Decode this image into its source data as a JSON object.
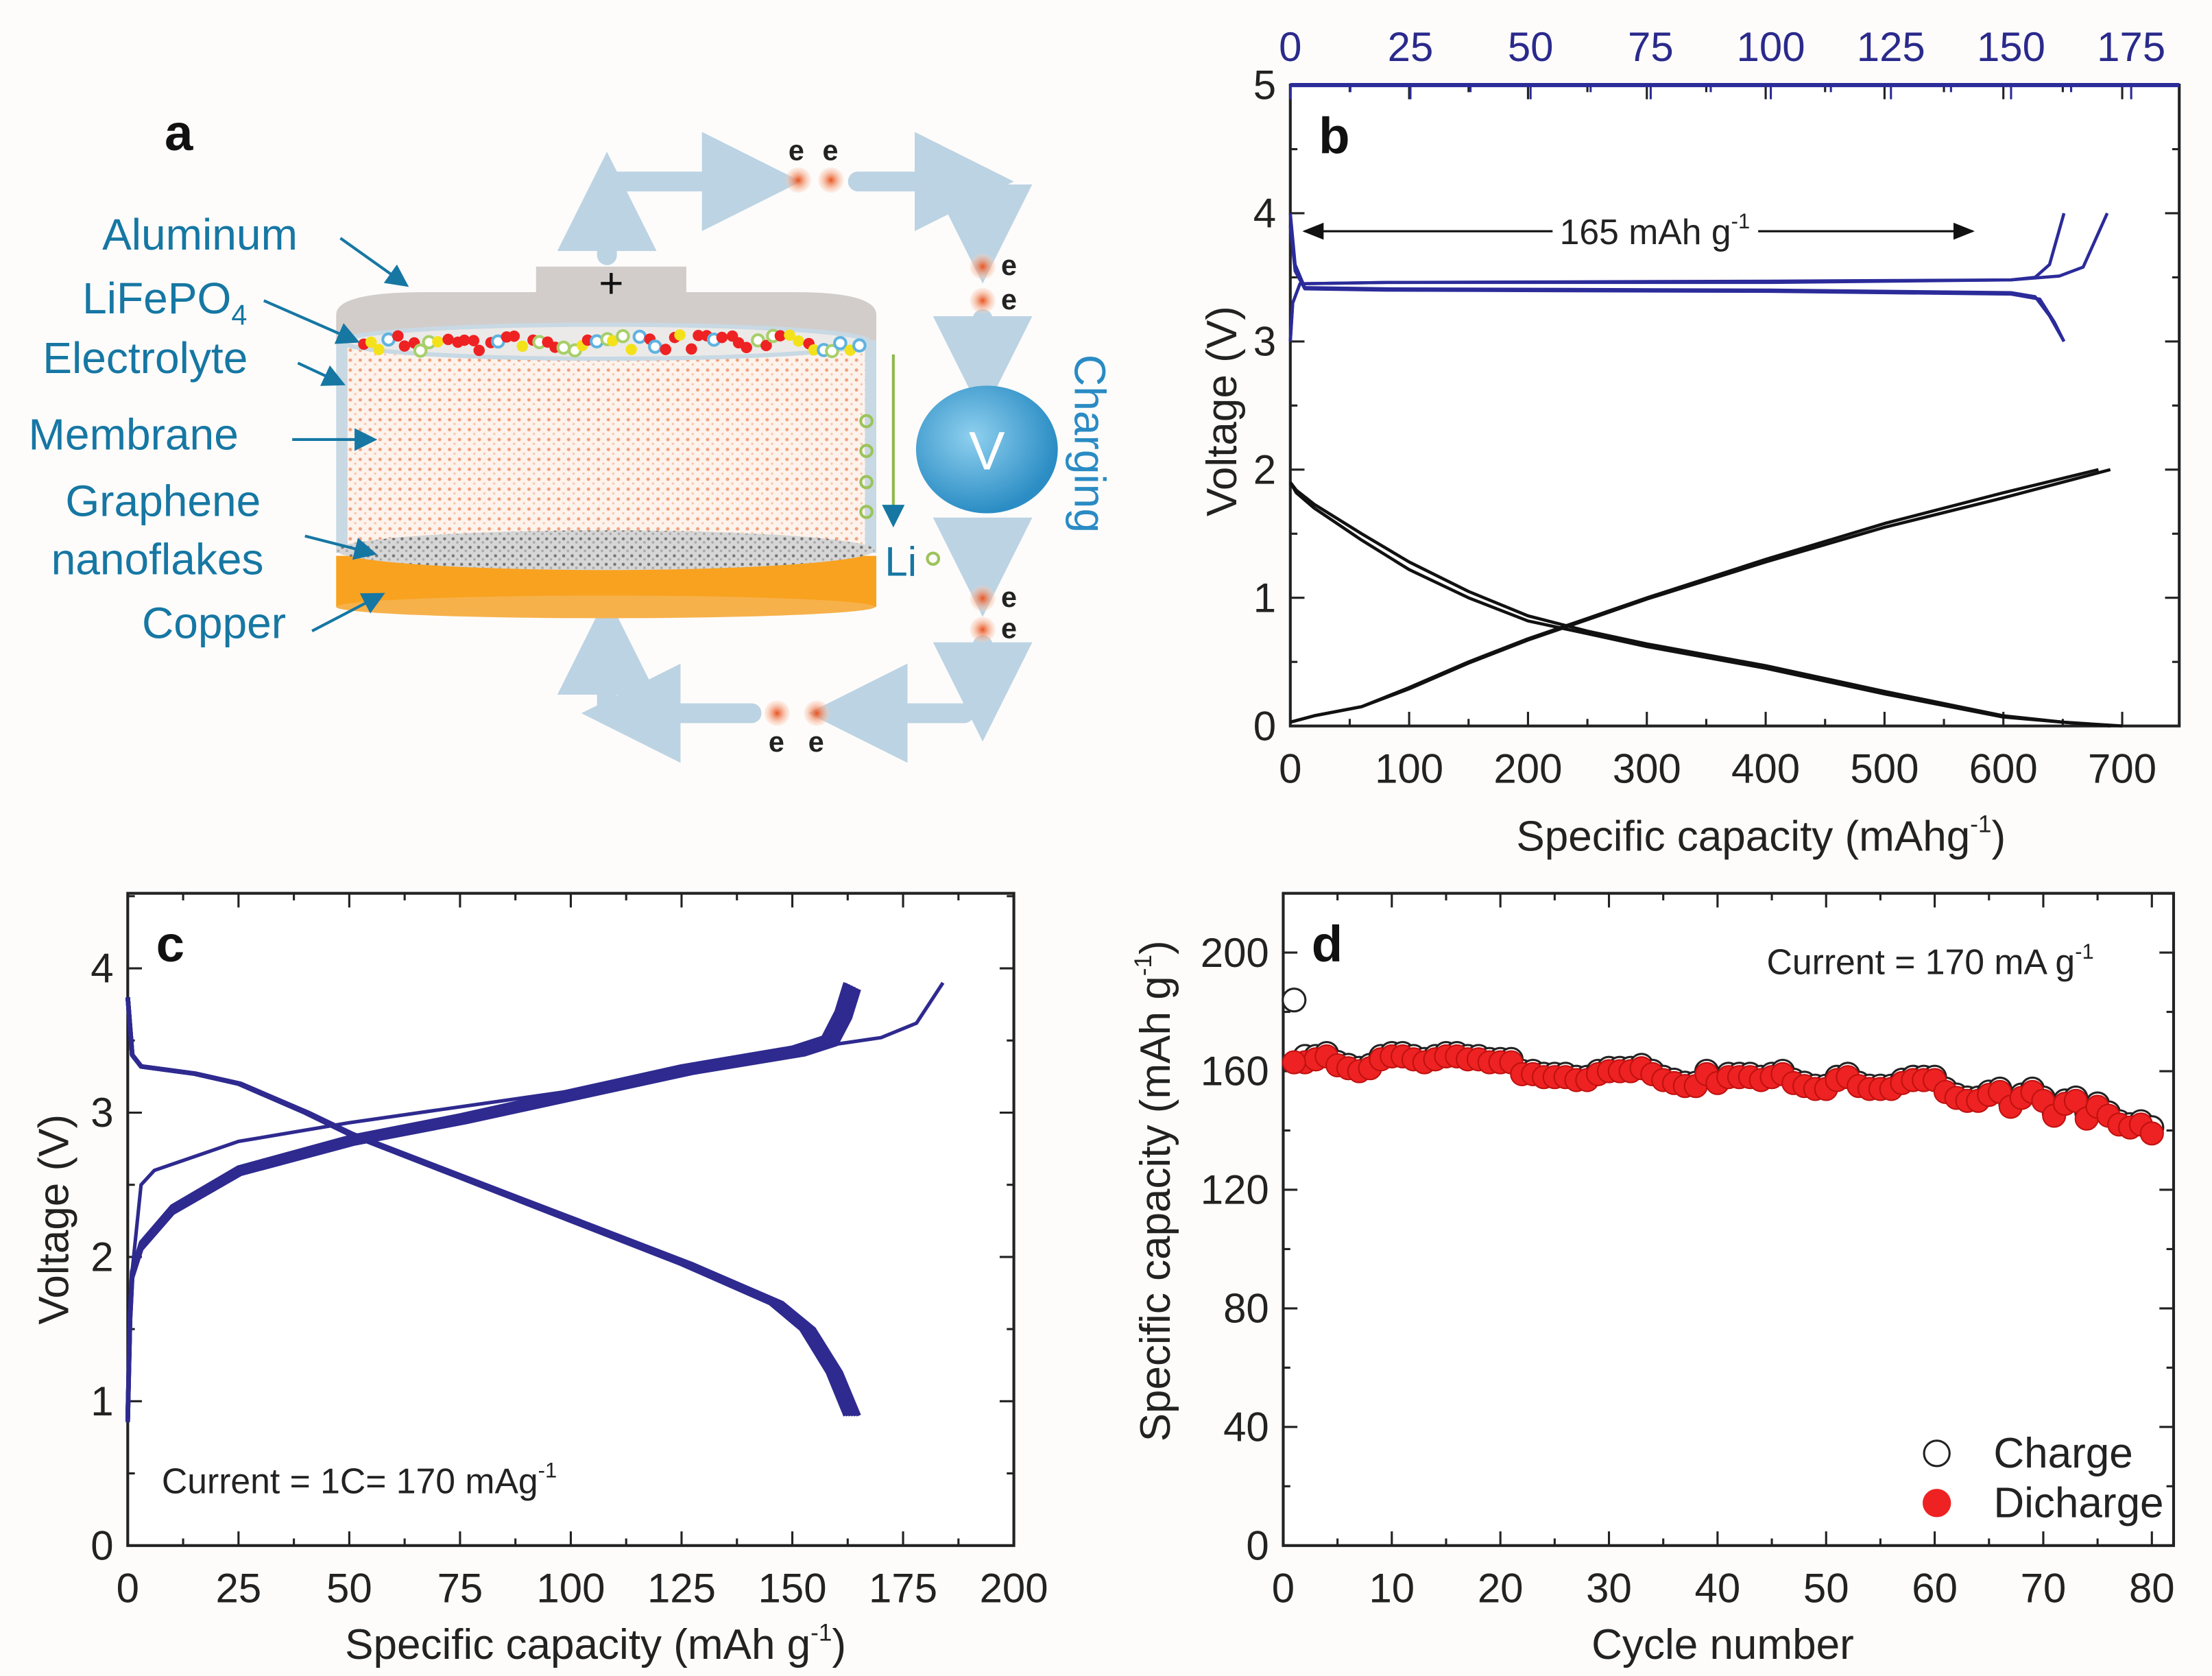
{
  "panel_a": {
    "letter": "a",
    "labels": {
      "aluminum": "Aluminum",
      "lifepo4": "LiFePO",
      "lifepo4_sub": "4",
      "electrolyte": "Electrolyte",
      "membrane": "Membrane",
      "graphene": "Graphene",
      "nanoflakes": "nanoflakes",
      "copper": "Copper",
      "plus": "+",
      "voltmeter": "V",
      "charging": "Charging",
      "li": "Li",
      "electron": "e"
    },
    "colors": {
      "label": "#1677a3",
      "copper": "#f8a21f",
      "lid": "#d2cdcb",
      "circuit": "#bcd3e3",
      "voltmeter": "#4aa7d6",
      "li_ion": "#9cc35a"
    }
  },
  "chart_data": [
    {
      "panel": "b",
      "type": "line",
      "letter": "b",
      "xlabel": "Specific capacity (mAhg",
      "xlabel_sup": "-1",
      "xlabel_end": ")",
      "ylabel": "Voltage (V)",
      "xlim": [
        0,
        748
      ],
      "ylim": [
        0,
        5
      ],
      "xticks": [
        0,
        100,
        200,
        300,
        400,
        500,
        600,
        700
      ],
      "yticks": [
        0,
        1,
        2,
        3,
        4,
        5
      ],
      "top_xlim": [
        0,
        185
      ],
      "top_xticks": [
        0,
        25,
        50,
        75,
        100,
        125,
        150,
        175
      ],
      "annotation": "165 mAh g",
      "annotation_sup": "-1",
      "annotation_range": [
        0,
        142
      ],
      "annotation_v": 3.86,
      "series": [
        {
          "name": "graphene discharge 1",
          "axis": "bottom",
          "color": "#111111",
          "points": [
            [
              0,
              1.9
            ],
            [
              5,
              1.82
            ],
            [
              20,
              1.7
            ],
            [
              60,
              1.45
            ],
            [
              100,
              1.22
            ],
            [
              150,
              1.0
            ],
            [
              200,
              0.82
            ],
            [
              250,
              0.72
            ],
            [
              300,
              0.62
            ],
            [
              400,
              0.45
            ],
            [
              500,
              0.25
            ],
            [
              600,
              0.07
            ],
            [
              650,
              0.03
            ],
            [
              700,
              0
            ]
          ]
        },
        {
          "name": "graphene discharge 2",
          "axis": "bottom",
          "color": "#111111",
          "points": [
            [
              0,
              1.9
            ],
            [
              5,
              1.84
            ],
            [
              20,
              1.73
            ],
            [
              60,
              1.5
            ],
            [
              100,
              1.28
            ],
            [
              150,
              1.05
            ],
            [
              200,
              0.86
            ],
            [
              250,
              0.74
            ],
            [
              300,
              0.64
            ],
            [
              400,
              0.47
            ],
            [
              500,
              0.27
            ],
            [
              600,
              0.08
            ],
            [
              650,
              0.03
            ],
            [
              690,
              0
            ]
          ]
        },
        {
          "name": "graphene charge 1",
          "axis": "bottom",
          "color": "#111111",
          "points": [
            [
              0,
              0.03
            ],
            [
              20,
              0.08
            ],
            [
              60,
              0.15
            ],
            [
              100,
              0.3
            ],
            [
              150,
              0.5
            ],
            [
              200,
              0.68
            ],
            [
              250,
              0.84
            ],
            [
              300,
              1.0
            ],
            [
              400,
              1.3
            ],
            [
              500,
              1.58
            ],
            [
              600,
              1.82
            ],
            [
              680,
              2.0
            ]
          ]
        },
        {
          "name": "graphene charge 2",
          "axis": "bottom",
          "color": "#111111",
          "points": [
            [
              0,
              0.03
            ],
            [
              20,
              0.08
            ],
            [
              60,
              0.15
            ],
            [
              100,
              0.29
            ],
            [
              150,
              0.49
            ],
            [
              200,
              0.67
            ],
            [
              250,
              0.83
            ],
            [
              300,
              0.99
            ],
            [
              400,
              1.28
            ],
            [
              500,
              1.55
            ],
            [
              600,
              1.78
            ],
            [
              690,
              2.0
            ]
          ]
        },
        {
          "name": "LiFePO4 charge 1",
          "axis": "top",
          "color": "#2b2b9a",
          "points": [
            [
              0,
              3.0
            ],
            [
              0.5,
              3.3
            ],
            [
              2,
              3.45
            ],
            [
              20,
              3.46
            ],
            [
              100,
              3.46
            ],
            [
              150,
              3.48
            ],
            [
              155,
              3.5
            ],
            [
              158,
              3.6
            ],
            [
              161,
              4.0
            ]
          ]
        },
        {
          "name": "LiFePO4 charge 2",
          "axis": "top",
          "color": "#2b2b9a",
          "points": [
            [
              0,
              3.0
            ],
            [
              0.5,
              3.3
            ],
            [
              2,
              3.45
            ],
            [
              20,
              3.46
            ],
            [
              100,
              3.47
            ],
            [
              150,
              3.48
            ],
            [
              160,
              3.51
            ],
            [
              165,
              3.58
            ],
            [
              170,
              4.0
            ]
          ]
        },
        {
          "name": "LiFePO4 discharge 1",
          "axis": "top",
          "color": "#2b2b9a",
          "points": [
            [
              0,
              4.0
            ],
            [
              1,
              3.6
            ],
            [
              3,
              3.42
            ],
            [
              20,
              3.41
            ],
            [
              100,
              3.4
            ],
            [
              150,
              3.38
            ],
            [
              155,
              3.35
            ],
            [
              158,
              3.2
            ],
            [
              161,
              3.0
            ]
          ]
        },
        {
          "name": "LiFePO4 discharge 2",
          "axis": "top",
          "color": "#2b2b9a",
          "points": [
            [
              0,
              3.9
            ],
            [
              1,
              3.55
            ],
            [
              3,
              3.41
            ],
            [
              20,
              3.4
            ],
            [
              100,
              3.39
            ],
            [
              150,
              3.37
            ],
            [
              156,
              3.33
            ],
            [
              159,
              3.15
            ],
            [
              161,
              3.0
            ]
          ]
        }
      ]
    },
    {
      "panel": "c",
      "type": "line",
      "letter": "c",
      "xlabel": "Specific capacity (mAh g",
      "xlabel_sup": "-1",
      "xlabel_end": ")",
      "ylabel": "Voltage (V)",
      "xlim": [
        0,
        200
      ],
      "ylim": [
        0,
        4.52
      ],
      "xticks": [
        0,
        25,
        50,
        75,
        100,
        125,
        150,
        175,
        200
      ],
      "yticks": [
        0,
        1,
        2,
        3,
        4
      ],
      "annotation": "Current = 1C= 170 mAg",
      "annotation_sup": "-1",
      "color": "#2e2a8f",
      "cycle_offsets": [
        0,
        0.6,
        1.2,
        1.8,
        2.4,
        3.0
      ],
      "first_charge": [
        [
          0,
          0.9
        ],
        [
          0.5,
          1.6
        ],
        [
          1,
          1.9
        ],
        [
          3,
          2.5
        ],
        [
          6,
          2.6
        ],
        [
          25,
          2.8
        ],
        [
          50,
          2.93
        ],
        [
          100,
          3.15
        ],
        [
          150,
          3.43
        ],
        [
          170,
          3.52
        ],
        [
          178,
          3.62
        ],
        [
          184,
          3.9
        ]
      ],
      "charge": [
        [
          0,
          0.9
        ],
        [
          0.5,
          1.6
        ],
        [
          1,
          1.9
        ],
        [
          3,
          2.1
        ],
        [
          10,
          2.35
        ],
        [
          25,
          2.62
        ],
        [
          50,
          2.83
        ],
        [
          75,
          2.98
        ],
        [
          100,
          3.15
        ],
        [
          125,
          3.32
        ],
        [
          150,
          3.45
        ],
        [
          157,
          3.52
        ],
        [
          160,
          3.7
        ],
        [
          162,
          3.9
        ]
      ],
      "discharge": [
        [
          0,
          3.8
        ],
        [
          1,
          3.4
        ],
        [
          3,
          3.32
        ],
        [
          15,
          3.27
        ],
        [
          25,
          3.2
        ],
        [
          40,
          3.0
        ],
        [
          50,
          2.85
        ],
        [
          75,
          2.55
        ],
        [
          100,
          2.25
        ],
        [
          125,
          1.95
        ],
        [
          145,
          1.68
        ],
        [
          152,
          1.5
        ],
        [
          158,
          1.2
        ],
        [
          162,
          0.9
        ]
      ]
    },
    {
      "panel": "d",
      "type": "scatter",
      "letter": "d",
      "xlabel": "Cycle number",
      "ylabel": "Specific capacity (mAh g",
      "ylabel_sup": "-1",
      "ylabel_end": ")",
      "xlim": [
        0,
        82
      ],
      "ylim": [
        0,
        220
      ],
      "xticks": [
        0,
        10,
        20,
        30,
        40,
        50,
        60,
        70,
        80
      ],
      "yticks": [
        0,
        40,
        80,
        120,
        160,
        200
      ],
      "annotation": "Current = 170 mA g",
      "annotation_sup": "-1",
      "legend": [
        {
          "label": "Charge",
          "style": "open",
          "color": "#222222"
        },
        {
          "label": "Dicharge",
          "style": "filled",
          "color": "#ee2222"
        }
      ],
      "legend_position": "bottom-right",
      "cycles": [
        1,
        2,
        3,
        4,
        5,
        6,
        7,
        8,
        9,
        10,
        11,
        12,
        13,
        14,
        15,
        16,
        17,
        18,
        19,
        20,
        21,
        22,
        23,
        24,
        25,
        26,
        27,
        28,
        29,
        30,
        31,
        32,
        33,
        34,
        35,
        36,
        37,
        38,
        39,
        40,
        41,
        42,
        43,
        44,
        45,
        46,
        47,
        48,
        49,
        50,
        51,
        52,
        53,
        54,
        55,
        56,
        57,
        58,
        59,
        60,
        61,
        62,
        63,
        64,
        65,
        66,
        67,
        68,
        69,
        70,
        71,
        72,
        73,
        74,
        75,
        76,
        77,
        78,
        79,
        80
      ],
      "charge": [
        184,
        165,
        165,
        166,
        163,
        162,
        161,
        162,
        165,
        166,
        166,
        165,
        164,
        165,
        166,
        166,
        165,
        165,
        164,
        164,
        164,
        160,
        160,
        159,
        159,
        159,
        158,
        158,
        160,
        161,
        161,
        161,
        162,
        160,
        158,
        157,
        156,
        156,
        160,
        157,
        159,
        159,
        159,
        158,
        159,
        160,
        157,
        156,
        155,
        155,
        158,
        159,
        156,
        155,
        155,
        155,
        157,
        158,
        158,
        158,
        154,
        152,
        151,
        151,
        153,
        154,
        149,
        152,
        154,
        151,
        146,
        150,
        151,
        146,
        149,
        146,
        143,
        142,
        143,
        141
      ],
      "discharge": [
        163,
        163,
        164,
        165,
        162,
        161,
        160,
        161,
        164,
        165,
        165,
        164,
        163,
        164,
        165,
        165,
        164,
        164,
        163,
        163,
        163,
        159,
        159,
        158,
        158,
        158,
        157,
        157,
        159,
        160,
        160,
        160,
        161,
        159,
        157,
        156,
        155,
        155,
        159,
        156,
        158,
        158,
        158,
        157,
        158,
        159,
        156,
        155,
        154,
        154,
        157,
        158,
        155,
        154,
        154,
        154,
        156,
        157,
        157,
        157,
        153,
        151,
        150,
        150,
        152,
        153,
        148,
        151,
        153,
        150,
        145,
        149,
        150,
        144,
        148,
        145,
        142,
        141,
        142,
        139
      ]
    }
  ]
}
